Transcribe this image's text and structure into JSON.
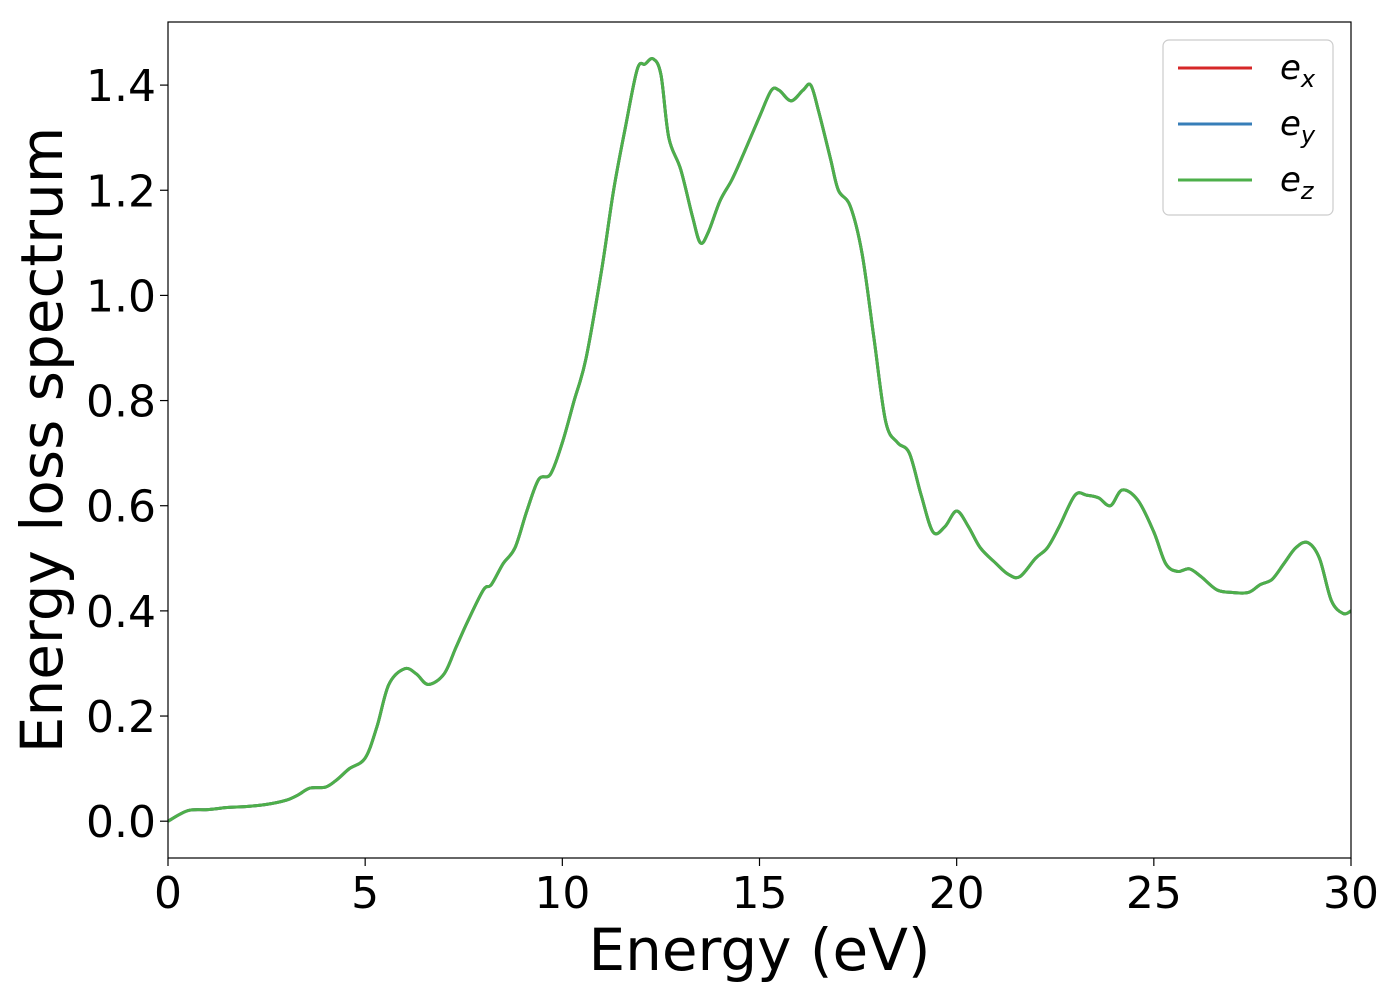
{
  "chart_data": {
    "type": "line",
    "title": "",
    "xlabel": "Energy (eV)",
    "ylabel": "Energy loss spectrum",
    "xlim": [
      0,
      30
    ],
    "ylim": [
      -0.07,
      1.52
    ],
    "xticks": [
      0,
      5,
      10,
      15,
      20,
      25,
      30
    ],
    "xtick_labels": [
      "0",
      "5",
      "10",
      "15",
      "20",
      "25",
      "30"
    ],
    "yticks": [
      0.0,
      0.2,
      0.4,
      0.6,
      0.8,
      1.0,
      1.2,
      1.4
    ],
    "ytick_labels": [
      "0.0",
      "0.2",
      "0.4",
      "0.6",
      "0.8",
      "1.0",
      "1.2",
      "1.4"
    ],
    "grid": false,
    "legend": {
      "position": "top-right"
    },
    "x": [
      0,
      0.5,
      1,
      1.5,
      2,
      2.5,
      3,
      3.3,
      3.6,
      4,
      4.3,
      4.6,
      5,
      5.3,
      5.6,
      6,
      6.3,
      6.6,
      7,
      7.3,
      7.6,
      8,
      8.2,
      8.5,
      8.8,
      9.1,
      9.4,
      9.7,
      10,
      10.3,
      10.6,
      11,
      11.3,
      11.6,
      11.9,
      12.1,
      12.3,
      12.5,
      12.7,
      13,
      13.3,
      13.5,
      13.7,
      14,
      14.3,
      14.6,
      15,
      15.3,
      15.5,
      15.8,
      16.1,
      16.3,
      16.5,
      16.8,
      17,
      17.3,
      17.6,
      17.9,
      18.2,
      18.5,
      18.8,
      19.1,
      19.4,
      19.7,
      20,
      20.3,
      20.6,
      21,
      21.3,
      21.6,
      22,
      22.3,
      22.6,
      23,
      23.3,
      23.6,
      23.9,
      24.2,
      24.6,
      25,
      25.3,
      25.6,
      25.9,
      26.2,
      26.6,
      27,
      27.4,
      27.7,
      28,
      28.3,
      28.6,
      28.9,
      29.2,
      29.5,
      29.8,
      30
    ],
    "series": [
      {
        "name": "e_x",
        "label_base": "e",
        "label_sub": "x",
        "color": "#d62728",
        "values": [
          0.0,
          0.02,
          0.022,
          0.026,
          0.028,
          0.032,
          0.04,
          0.05,
          0.063,
          0.065,
          0.08,
          0.1,
          0.12,
          0.18,
          0.26,
          0.29,
          0.28,
          0.26,
          0.28,
          0.33,
          0.38,
          0.44,
          0.45,
          0.49,
          0.52,
          0.59,
          0.65,
          0.66,
          0.72,
          0.8,
          0.88,
          1.05,
          1.2,
          1.32,
          1.43,
          1.44,
          1.45,
          1.42,
          1.3,
          1.24,
          1.15,
          1.1,
          1.12,
          1.18,
          1.22,
          1.27,
          1.34,
          1.39,
          1.39,
          1.37,
          1.39,
          1.4,
          1.35,
          1.26,
          1.2,
          1.17,
          1.08,
          0.92,
          0.76,
          0.72,
          0.7,
          0.62,
          0.55,
          0.56,
          0.59,
          0.56,
          0.52,
          0.49,
          0.47,
          0.465,
          0.5,
          0.52,
          0.56,
          0.62,
          0.62,
          0.615,
          0.6,
          0.63,
          0.61,
          0.55,
          0.49,
          0.475,
          0.48,
          0.465,
          0.44,
          0.435,
          0.435,
          0.45,
          0.46,
          0.49,
          0.52,
          0.53,
          0.5,
          0.42,
          0.395,
          0.4
        ]
      },
      {
        "name": "e_y",
        "label_base": "e",
        "label_sub": "y",
        "color": "#377eb8",
        "values": [
          0.0,
          0.02,
          0.022,
          0.026,
          0.028,
          0.032,
          0.04,
          0.05,
          0.063,
          0.065,
          0.08,
          0.1,
          0.12,
          0.18,
          0.26,
          0.29,
          0.28,
          0.26,
          0.28,
          0.33,
          0.38,
          0.44,
          0.45,
          0.49,
          0.52,
          0.59,
          0.65,
          0.66,
          0.72,
          0.8,
          0.88,
          1.05,
          1.2,
          1.32,
          1.43,
          1.44,
          1.45,
          1.42,
          1.3,
          1.24,
          1.15,
          1.1,
          1.12,
          1.18,
          1.22,
          1.27,
          1.34,
          1.39,
          1.39,
          1.37,
          1.39,
          1.4,
          1.35,
          1.26,
          1.2,
          1.17,
          1.08,
          0.92,
          0.76,
          0.72,
          0.7,
          0.62,
          0.55,
          0.56,
          0.59,
          0.56,
          0.52,
          0.49,
          0.47,
          0.465,
          0.5,
          0.52,
          0.56,
          0.62,
          0.62,
          0.615,
          0.6,
          0.63,
          0.61,
          0.55,
          0.49,
          0.475,
          0.48,
          0.465,
          0.44,
          0.435,
          0.435,
          0.45,
          0.46,
          0.49,
          0.52,
          0.53,
          0.5,
          0.42,
          0.395,
          0.4
        ]
      },
      {
        "name": "e_z",
        "label_base": "e",
        "label_sub": "z",
        "color": "#4daf4a",
        "values": [
          0.0,
          0.02,
          0.022,
          0.026,
          0.028,
          0.032,
          0.04,
          0.05,
          0.063,
          0.065,
          0.08,
          0.1,
          0.12,
          0.18,
          0.26,
          0.29,
          0.28,
          0.26,
          0.28,
          0.33,
          0.38,
          0.44,
          0.45,
          0.49,
          0.52,
          0.59,
          0.65,
          0.66,
          0.72,
          0.8,
          0.88,
          1.05,
          1.2,
          1.32,
          1.43,
          1.44,
          1.45,
          1.42,
          1.3,
          1.24,
          1.15,
          1.1,
          1.12,
          1.18,
          1.22,
          1.27,
          1.34,
          1.39,
          1.39,
          1.37,
          1.39,
          1.4,
          1.35,
          1.26,
          1.2,
          1.17,
          1.08,
          0.92,
          0.76,
          0.72,
          0.7,
          0.62,
          0.55,
          0.56,
          0.59,
          0.56,
          0.52,
          0.49,
          0.47,
          0.465,
          0.5,
          0.52,
          0.56,
          0.62,
          0.62,
          0.615,
          0.6,
          0.63,
          0.61,
          0.55,
          0.49,
          0.475,
          0.48,
          0.465,
          0.44,
          0.435,
          0.435,
          0.45,
          0.46,
          0.49,
          0.52,
          0.53,
          0.5,
          0.42,
          0.395,
          0.4
        ]
      }
    ]
  }
}
